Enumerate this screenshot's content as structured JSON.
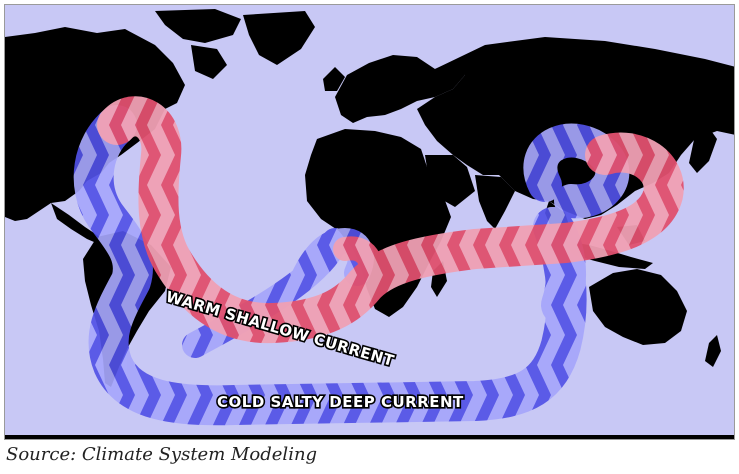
{
  "map": {
    "colors": {
      "ocean": "#c8c8f5",
      "land": "#000000",
      "warm_current": "#e8607a",
      "cold_current": "#6a6af0"
    },
    "labels": {
      "warm_current": "WARM  SHALLOW CURRENT",
      "cold_current": "COLD SALTY DEEP CURRENT"
    }
  },
  "caption": "Source: Climate System Modeling"
}
